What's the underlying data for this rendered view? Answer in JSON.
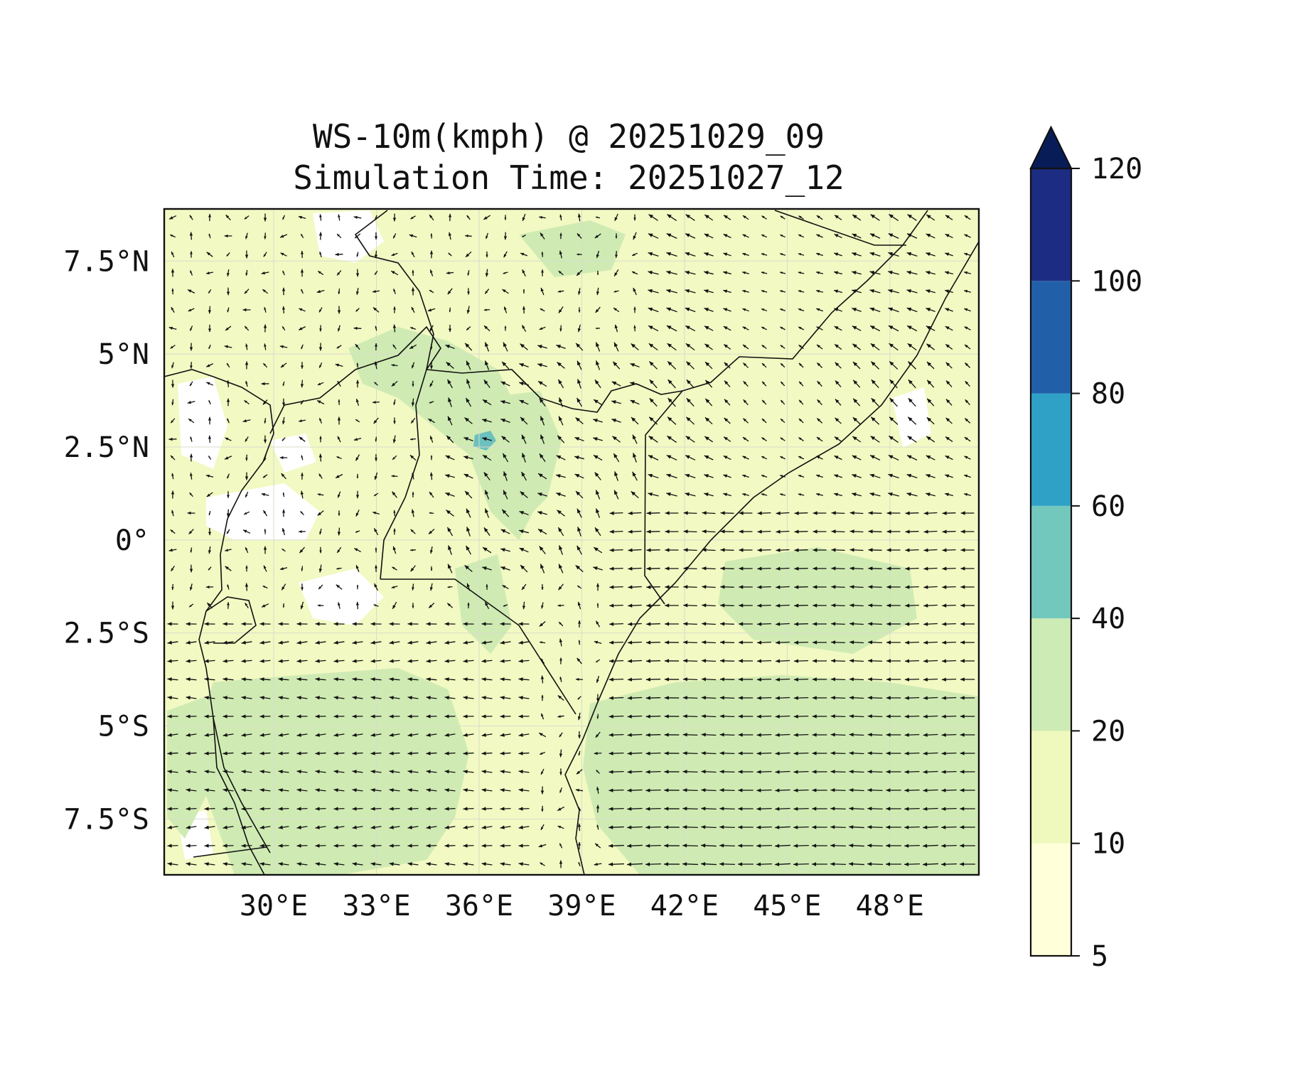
{
  "title": {
    "line1": "WS-10m(kmph) @ 20251029_09",
    "line2": "Simulation Time: 20251027_12"
  },
  "map": {
    "lon_range": [
      26.8,
      50.6
    ],
    "lat_range": [
      -9.0,
      8.9
    ],
    "lon_ticks": [
      {
        "value": 30,
        "label": "30°E"
      },
      {
        "value": 33,
        "label": "33°E"
      },
      {
        "value": 36,
        "label": "36°E"
      },
      {
        "value": 39,
        "label": "39°E"
      },
      {
        "value": 42,
        "label": "42°E"
      },
      {
        "value": 45,
        "label": "45°E"
      },
      {
        "value": 48,
        "label": "48°E"
      }
    ],
    "lat_ticks": [
      {
        "value": 7.5,
        "label": "7.5°N"
      },
      {
        "value": 5,
        "label": "5°N"
      },
      {
        "value": 2.5,
        "label": "2.5°N"
      },
      {
        "value": 0,
        "label": "0°"
      },
      {
        "value": -2.5,
        "label": "2.5°S"
      },
      {
        "value": -5,
        "label": "5°S"
      },
      {
        "value": -7.5,
        "label": "7.5°S"
      }
    ],
    "gridlines": true,
    "field_colors": {
      "background": "#f2f9c2",
      "light_patch": "#ffffff",
      "moderate_patch": "#cfebb3",
      "lake_patch": "#6cc0bd"
    },
    "borders_color": "#111111",
    "vector_color": "#111111",
    "icons": [
      "wind-vector-arrow",
      "colorbar-extend-triangle"
    ]
  },
  "colorbar": {
    "position": "right",
    "extend": "max",
    "levels": [
      {
        "label": "5",
        "value": 5,
        "color": "#ffffd9"
      },
      {
        "label": "10",
        "value": 10,
        "color": "#eff9bd"
      },
      {
        "label": "20",
        "value": 20,
        "color": "#cdebb4"
      },
      {
        "label": "40",
        "value": 40,
        "color": "#73c8bd"
      },
      {
        "label": "60",
        "value": 60,
        "color": "#2fa1c6"
      },
      {
        "label": "80",
        "value": 80,
        "color": "#225fa9"
      },
      {
        "label": "100",
        "value": 100,
        "color": "#1d2c83"
      },
      {
        "label": "120",
        "value": 120,
        "color": "#081d58"
      }
    ]
  }
}
